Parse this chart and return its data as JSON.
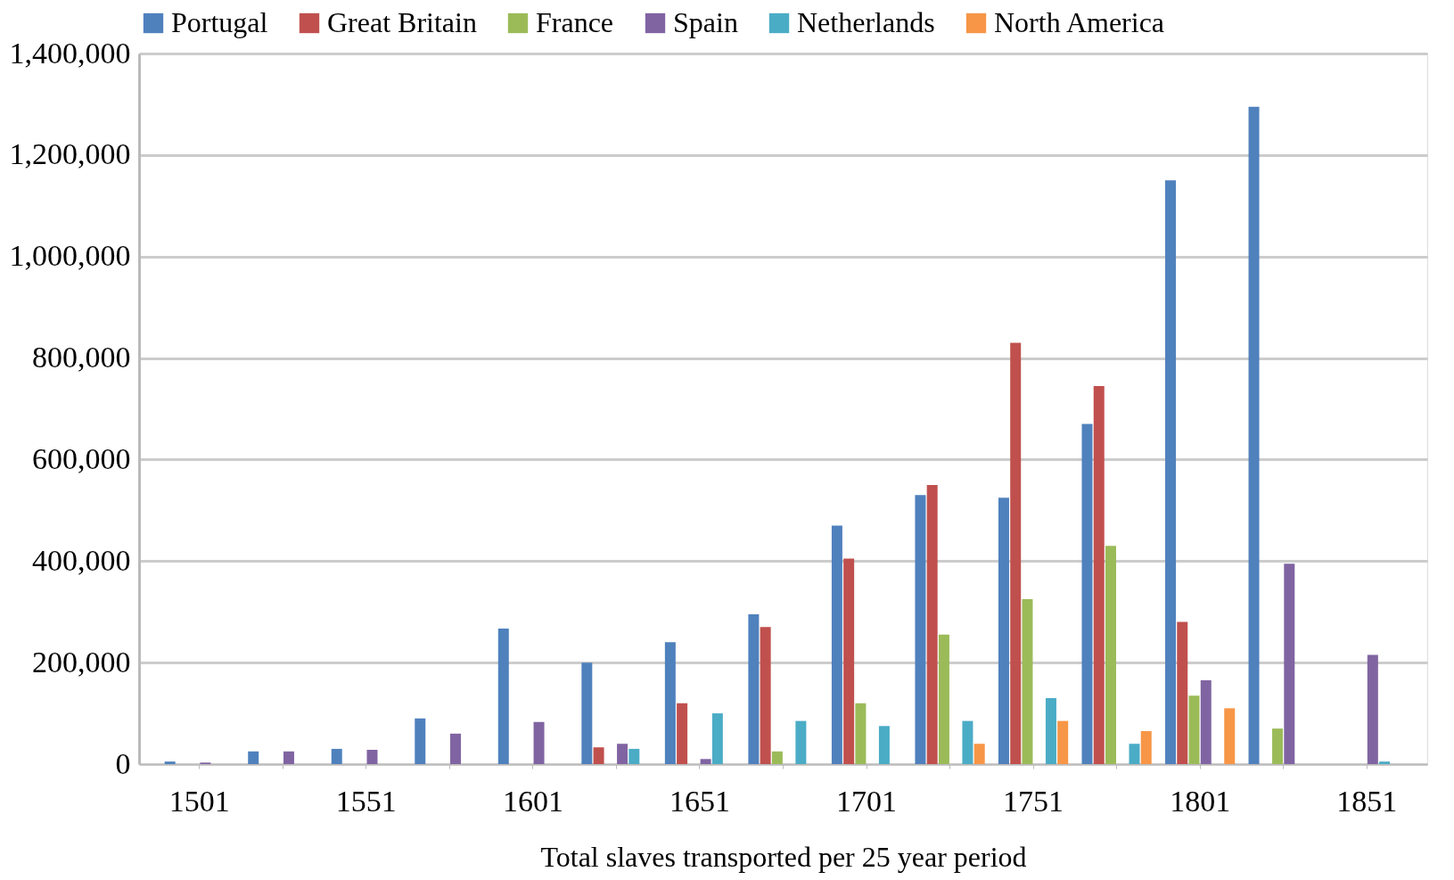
{
  "chart_data": {
    "type": "bar",
    "xlabel": "Total slaves transported per 25 year period",
    "categories": [
      "1501",
      null,
      "1551",
      null,
      "1601",
      null,
      "1651",
      null,
      "1701",
      null,
      "1751",
      null,
      "1801",
      null,
      "1851"
    ],
    "series": [
      {
        "name": "Portugal",
        "color": "#4f81bd",
        "values": [
          5000,
          25000,
          30000,
          90000,
          267000,
          200000,
          240000,
          295000,
          470000,
          530000,
          525000,
          670000,
          1150000,
          1295000,
          null
        ]
      },
      {
        "name": "Great Britain",
        "color": "#c0504d",
        "values": [
          null,
          null,
          null,
          null,
          null,
          33000,
          120000,
          270000,
          405000,
          550000,
          830000,
          745000,
          280000,
          null,
          null
        ]
      },
      {
        "name": "France",
        "color": "#9bbb59",
        "values": [
          null,
          null,
          null,
          null,
          null,
          null,
          null,
          25000,
          120000,
          255000,
          325000,
          430000,
          135000,
          70000,
          null
        ]
      },
      {
        "name": "Spain",
        "color": "#8064a2",
        "values": [
          3000,
          25000,
          28000,
          60000,
          83000,
          40000,
          10000,
          null,
          null,
          null,
          null,
          null,
          165000,
          395000,
          215000
        ]
      },
      {
        "name": "Netherlands",
        "color": "#4bacc6",
        "values": [
          null,
          null,
          null,
          null,
          null,
          30000,
          100000,
          85000,
          75000,
          85000,
          130000,
          40000,
          null,
          null,
          5000
        ]
      },
      {
        "name": "North America",
        "color": "#f79646",
        "values": [
          null,
          null,
          null,
          null,
          null,
          null,
          null,
          null,
          null,
          40000,
          85000,
          65000,
          110000,
          null,
          null
        ]
      }
    ],
    "ylim": [
      0,
      1400000
    ],
    "yticks": [
      0,
      {
        "value": 200000,
        "label": "200,000"
      },
      {
        "value": 400000,
        "label": "400,000"
      },
      {
        "value": 600000,
        "label": "600,000"
      },
      {
        "value": 800000,
        "label": "800,000"
      },
      {
        "value": 1000000,
        "label": "1,000,000"
      },
      {
        "value": 1200000,
        "label": "1,200,000"
      },
      {
        "value": 1400000,
        "label": "1,400,000"
      }
    ],
    "grid": "y",
    "legend": "top"
  }
}
